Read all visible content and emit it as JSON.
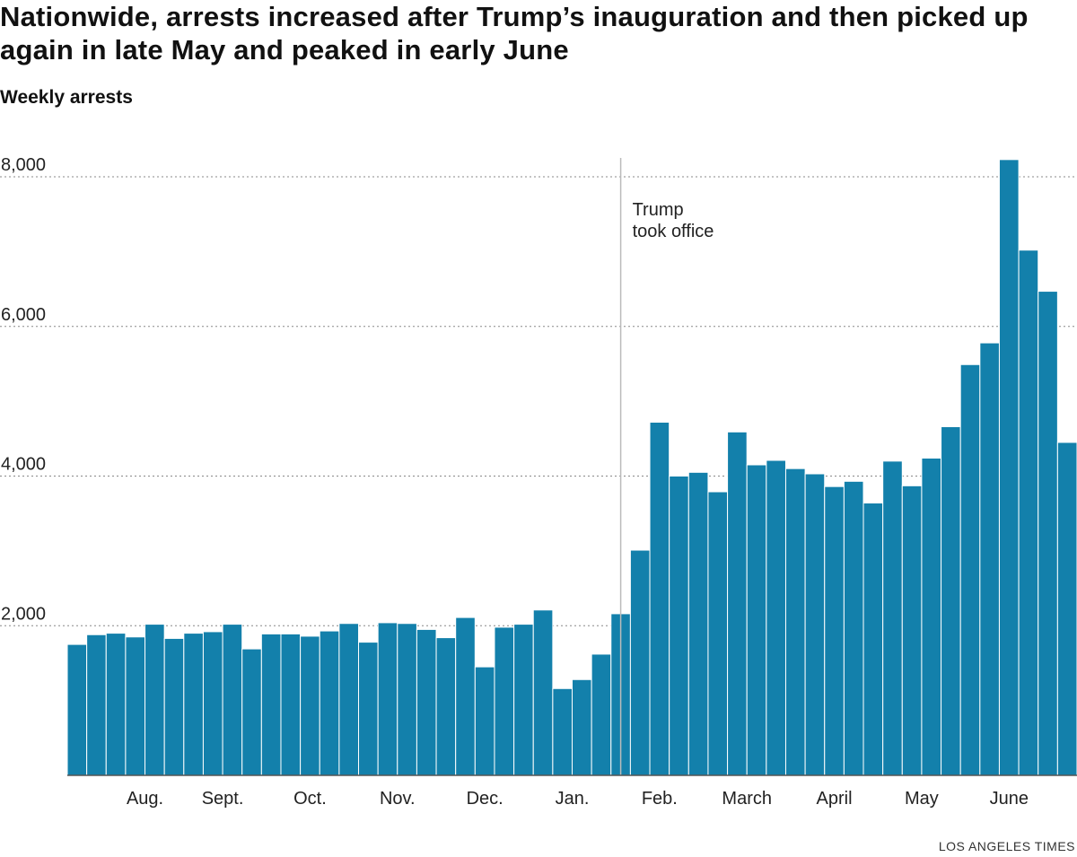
{
  "title": "Nationwide, arrests increased after Trump’s inauguration and then picked up again in late May and peaked in early June",
  "subtitle": "Weekly arrests",
  "credit": "LOS ANGELES TIMES",
  "colors": {
    "bar": "#1380ab",
    "grid": "#888888",
    "marker": "#bbbbbb",
    "text": "#111111"
  },
  "chart_data": {
    "type": "bar",
    "ylabel": "Weekly arrests",
    "ylim": [
      0,
      8300
    ],
    "y_ticks": [
      2000,
      4000,
      6000,
      8000
    ],
    "y_tick_labels": [
      "2,000",
      "4,000",
      "6,000",
      "8,000"
    ],
    "grid": "horizontal dotted",
    "x_tick_labels": [
      "Aug.",
      "Sept.",
      "Oct.",
      "Nov.",
      "Dec.",
      "Jan.",
      "Feb.",
      "March",
      "April",
      "May",
      "June"
    ],
    "x_tick_bar_index": [
      3.5,
      7.5,
      12,
      16.5,
      21,
      25.5,
      30,
      34.5,
      39,
      43.5,
      48
    ],
    "annotation": {
      "label_lines": [
        "Trump",
        "took office"
      ],
      "bar_index": 28.5
    },
    "values": [
      1750,
      1880,
      1900,
      1850,
      2020,
      1830,
      1900,
      1920,
      2020,
      1690,
      1890,
      1890,
      1860,
      1930,
      2030,
      1780,
      2040,
      2030,
      1950,
      1840,
      2110,
      1450,
      1980,
      2020,
      2210,
      1160,
      1280,
      1620,
      2160,
      3010,
      4720,
      4000,
      4050,
      3790,
      4590,
      4150,
      4210,
      4100,
      4030,
      3860,
      3930,
      3640,
      4200,
      3870,
      4240,
      4660,
      5490,
      5780,
      8230,
      7020,
      6470,
      4450
    ]
  }
}
